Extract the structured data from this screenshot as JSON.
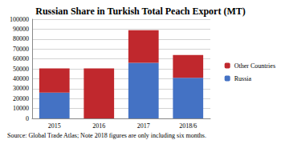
{
  "chart_data": {
    "type": "bar",
    "title": "Russian Share in Turkish Total Peach Export (MT)",
    "source": "Source: Global Trade Atlas; Note 2018 figures are only including six months.",
    "categories": [
      "2015",
      "2016",
      "2017",
      "2018/6"
    ],
    "series": [
      {
        "name": "Russia",
        "color": "#4472c4",
        "values": [
          26000,
          0,
          56000,
          41000
        ]
      },
      {
        "name": "Other Countries",
        "color": "#c0282d",
        "values": [
          24500,
          50500,
          33000,
          23000
        ]
      }
    ],
    "stacked": true,
    "ylim": [
      0,
      100000
    ],
    "yticks": [
      0,
      10000,
      20000,
      30000,
      40000,
      50000,
      60000,
      70000,
      80000,
      90000,
      100000
    ],
    "grid": true,
    "legend": "right"
  }
}
